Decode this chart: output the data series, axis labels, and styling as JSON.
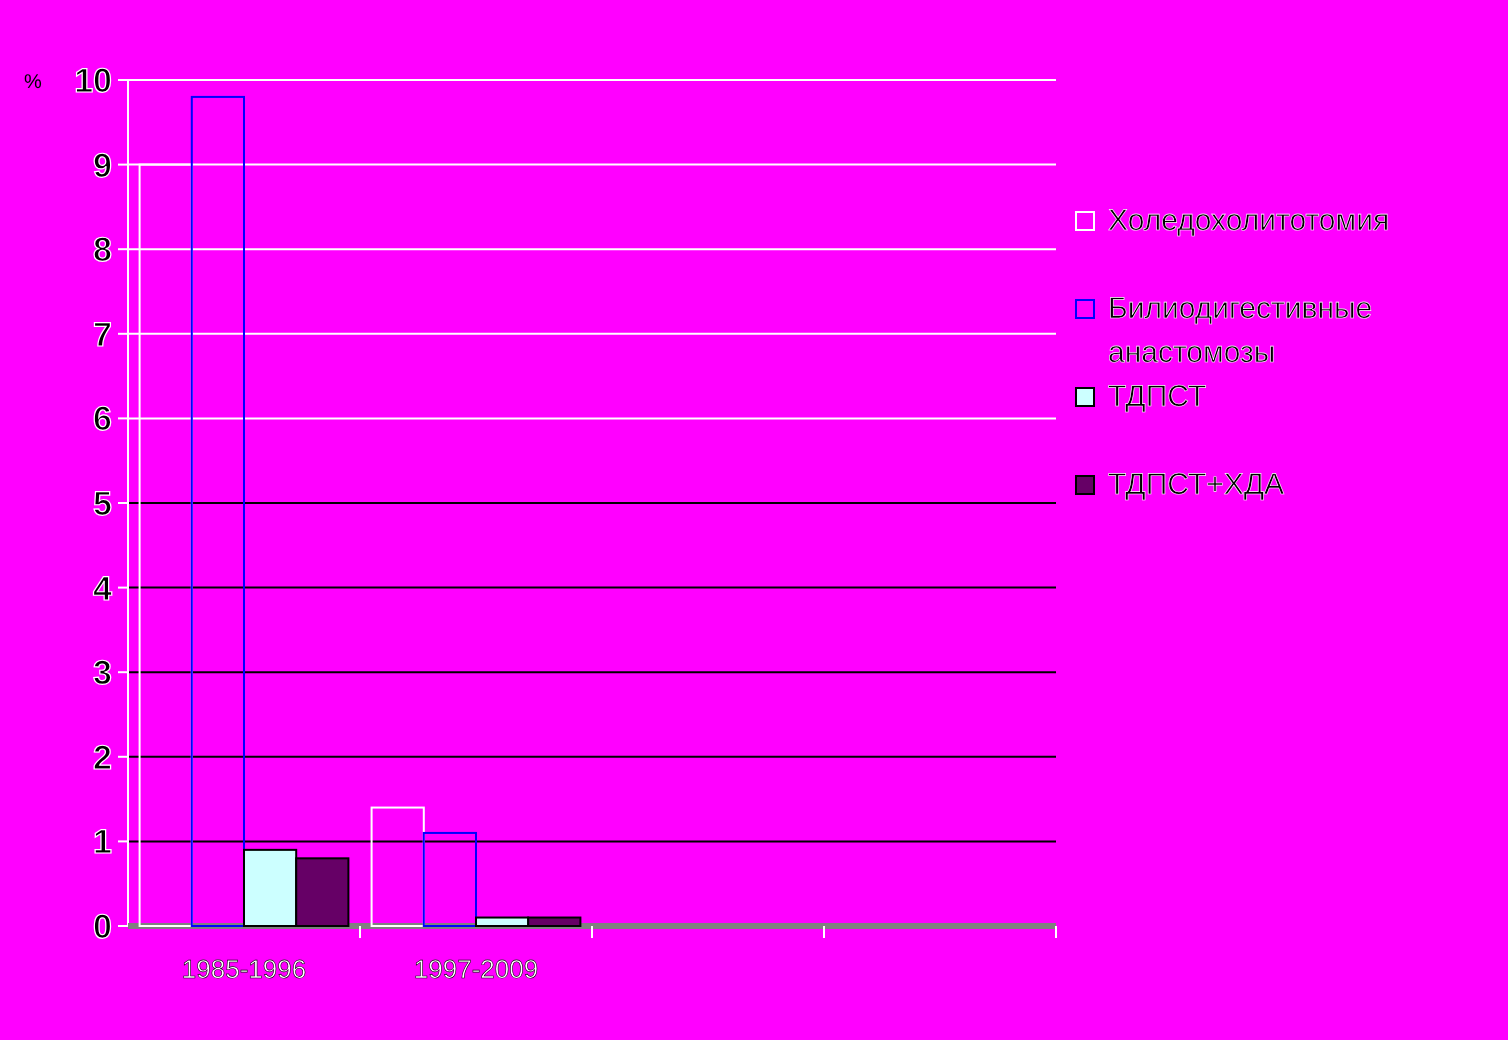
{
  "chart_data": {
    "type": "bar",
    "ylabel": "%",
    "categories": [
      "1985-1996",
      "1997-2009",
      null,
      null
    ],
    "series": [
      {
        "name": "Холедохолитотомия",
        "color": "#ffffff",
        "values": [
          9.0,
          1.4,
          null,
          null
        ]
      },
      {
        "name": "Билиодигестивные анастомозы",
        "color": "#0000ff",
        "values": [
          9.8,
          1.1,
          null,
          null
        ]
      },
      {
        "name": "ТДПСТ",
        "color": "#ccffff",
        "values": [
          0.9,
          0.1,
          null,
          null
        ]
      },
      {
        "name": "ТДПСТ+ХДА",
        "color": "#660066",
        "values": [
          0.8,
          0.1,
          null,
          null
        ]
      }
    ],
    "ylim": [
      0,
      10
    ],
    "yticks": [
      0,
      1,
      2,
      3,
      4,
      5,
      6,
      7,
      8,
      9,
      10
    ],
    "grid": "y",
    "legend": "right"
  }
}
